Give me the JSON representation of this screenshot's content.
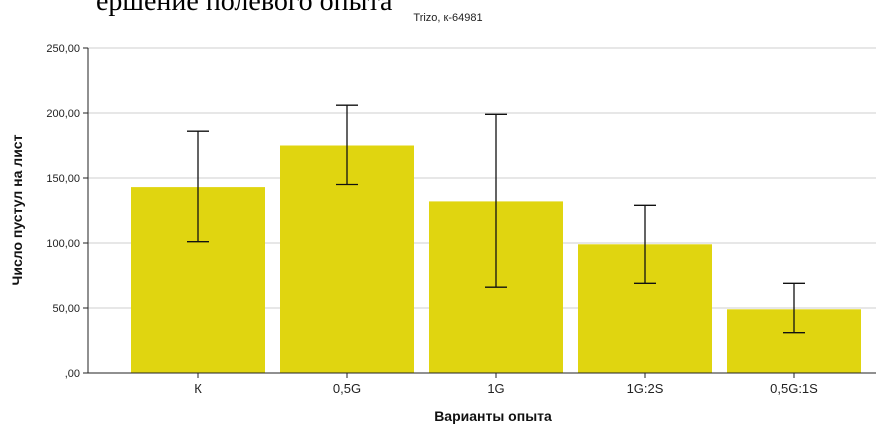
{
  "header_fragment": "ершение полевого опыта",
  "chart_data": {
    "type": "bar",
    "title": "Trizo, к-64981",
    "xlabel": "Варианты опыта",
    "ylabel": "Число пустул на лист",
    "categories": [
      "К",
      "0,5G",
      "1G",
      "1G:2S",
      "0,5G:1S"
    ],
    "values": [
      143,
      175,
      132,
      99,
      49
    ],
    "error_low": [
      101,
      145,
      66,
      69,
      31
    ],
    "error_high": [
      186,
      206,
      199,
      129,
      69
    ],
    "ylim": [
      0,
      250
    ],
    "yticks": [
      0,
      50,
      100,
      150,
      200,
      250
    ],
    "ytick_labels": [
      ",00",
      "50,00",
      "100,00",
      "150,00",
      "200,00",
      "250,00"
    ],
    "grid": true,
    "bar_color": "#e0d510"
  }
}
